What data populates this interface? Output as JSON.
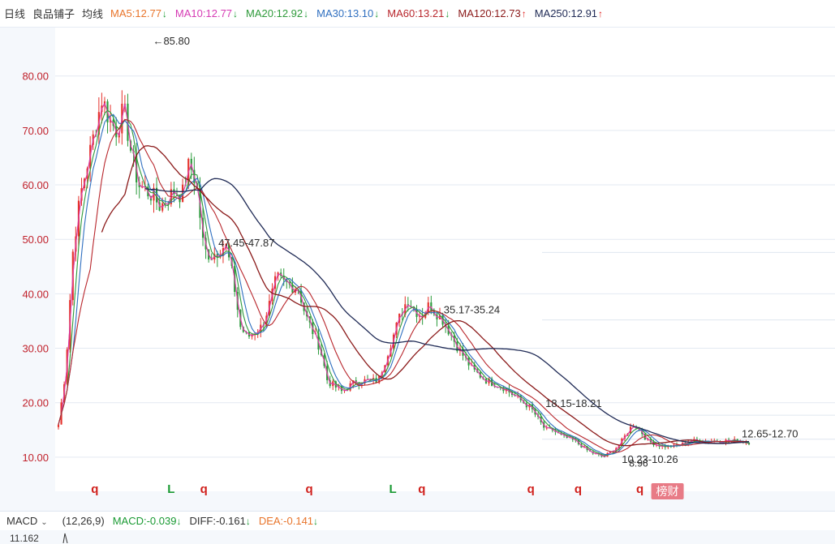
{
  "toolbar": {
    "period": "日线",
    "stock": "良品铺子",
    "indicator": "均线",
    "ma": [
      {
        "label": "MA5:12.77",
        "dir": "down",
        "color": "#e8742a"
      },
      {
        "label": "MA10:12.77",
        "dir": "down",
        "color": "#d63ab4"
      },
      {
        "label": "MA20:12.92",
        "dir": "down",
        "color": "#2e9a3a"
      },
      {
        "label": "MA30:13.10",
        "dir": "down",
        "color": "#2f6fc0"
      },
      {
        "label": "MA60:13.21",
        "dir": "down",
        "color": "#b8262c"
      },
      {
        "label": "MA120:12.73",
        "dir": "up",
        "color": "#8b1a1a"
      },
      {
        "label": "MA250:12.91",
        "dir": "up",
        "color": "#1f2a55"
      }
    ],
    "arrow_up": "↑",
    "arrow_down": "↓",
    "up_color": "#e0201d",
    "down_color": "#1a9a33"
  },
  "chart_data": {
    "type": "line",
    "title": "",
    "xlabel": "",
    "ylabel": "",
    "ylim": [
      7,
      88
    ],
    "yticks": [
      "10.00",
      "20.00",
      "30.00",
      "40.00",
      "50.00",
      "60.00",
      "70.00",
      "80.00"
    ],
    "ytick_values": [
      10,
      20,
      30,
      40,
      50,
      60,
      70,
      80
    ],
    "grid": true,
    "x_count": 240,
    "price_path": [
      [
        0,
        16
      ],
      [
        2,
        26
      ],
      [
        4,
        48
      ],
      [
        6,
        58
      ],
      [
        10,
        70
      ],
      [
        12,
        76
      ],
      [
        14,
        72
      ],
      [
        16,
        70
      ],
      [
        18,
        74
      ],
      [
        20,
        66
      ],
      [
        22,
        60
      ],
      [
        26,
        58
      ],
      [
        28,
        56
      ],
      [
        32,
        59
      ],
      [
        34,
        58
      ],
      [
        36,
        64
      ],
      [
        38,
        60
      ],
      [
        40,
        48
      ],
      [
        42,
        47
      ],
      [
        46,
        49
      ],
      [
        48,
        43
      ],
      [
        50,
        34
      ],
      [
        52,
        32
      ],
      [
        56,
        34
      ],
      [
        58,
        38
      ],
      [
        60,
        43
      ],
      [
        62,
        42
      ],
      [
        66,
        41
      ],
      [
        68,
        36
      ],
      [
        72,
        30
      ],
      [
        74,
        24
      ],
      [
        78,
        22
      ],
      [
        82,
        24
      ],
      [
        88,
        24
      ],
      [
        90,
        28
      ],
      [
        94,
        36
      ],
      [
        96,
        39
      ],
      [
        98,
        37
      ],
      [
        100,
        36
      ],
      [
        102,
        38
      ],
      [
        106,
        35
      ],
      [
        110,
        30
      ],
      [
        114,
        26
      ],
      [
        118,
        24
      ],
      [
        122,
        23
      ],
      [
        126,
        21
      ],
      [
        128,
        20
      ],
      [
        130,
        19
      ],
      [
        132,
        17
      ],
      [
        134,
        15
      ],
      [
        136,
        15
      ],
      [
        138,
        14
      ],
      [
        142,
        13
      ],
      [
        146,
        11
      ],
      [
        150,
        10
      ],
      [
        154,
        12
      ],
      [
        156,
        14
      ],
      [
        158,
        16
      ],
      [
        160,
        15
      ],
      [
        162,
        13
      ],
      [
        166,
        12
      ],
      [
        170,
        12
      ],
      [
        174,
        13
      ],
      [
        178,
        13
      ],
      [
        182,
        13
      ],
      [
        186,
        13
      ],
      [
        190,
        12.7
      ]
    ],
    "moving_averages": [
      {
        "name": "MA5",
        "color": "#e8742a",
        "window": 5
      },
      {
        "name": "MA10",
        "color": "#d63ab4",
        "window": 10
      },
      {
        "name": "MA20",
        "color": "#2e9a3a",
        "window": 20
      },
      {
        "name": "MA30",
        "color": "#2f6fc0",
        "window": 30
      },
      {
        "name": "MA60",
        "color": "#b8262c",
        "window": 60
      },
      {
        "name": "MA120",
        "color": "#8b1a1a",
        "window": 120
      },
      {
        "name": "MA250",
        "color": "#1f2a55",
        "window": 250
      }
    ],
    "annotations": [
      {
        "text": "←85.80",
        "x": 26,
        "y": 85.8
      },
      {
        "text": "47.45-47.87",
        "x": 44,
        "y": 48.7
      },
      {
        "text": "35.17-35.24",
        "x": 106,
        "y": 36.4
      },
      {
        "text": "18.15-18.21",
        "x": 134,
        "y": 19.2
      },
      {
        "text": "10.23-10.26",
        "x": 155,
        "y": 8.9
      },
      {
        "text": "12.65-12.70",
        "x": 188,
        "y": 13.6
      }
    ],
    "low_label": {
      "text": "8.96",
      "x": 157,
      "y": 8.3
    },
    "markers": [
      {
        "text": "q",
        "x": 10,
        "color": "#d0201c"
      },
      {
        "text": "L",
        "x": 31,
        "color": "#1a9a33"
      },
      {
        "text": "q",
        "x": 40,
        "color": "#d0201c"
      },
      {
        "text": "q",
        "x": 69,
        "color": "#d0201c"
      },
      {
        "text": "L",
        "x": 92,
        "color": "#1a9a33"
      },
      {
        "text": "q",
        "x": 100,
        "color": "#d0201c"
      },
      {
        "text": "q",
        "x": 130,
        "color": "#d0201c"
      },
      {
        "text": "q",
        "x": 143,
        "color": "#d0201c"
      },
      {
        "text": "q",
        "x": 160,
        "color": "#d0201c"
      }
    ],
    "badge": {
      "text": "榜财",
      "x": 164,
      "color": "#e87b86"
    }
  },
  "macd": {
    "selector": "MACD",
    "params": "(12,26,9)",
    "values": [
      {
        "label": "MACD:-0.039",
        "color": "#1a9a33",
        "dir": "down"
      },
      {
        "label": "DIFF:-0.161",
        "color": "#333333",
        "dir": "down"
      },
      {
        "label": "DEA:-0.141",
        "color": "#e8742a",
        "dir": "down"
      }
    ],
    "axis_label": "11.162"
  }
}
